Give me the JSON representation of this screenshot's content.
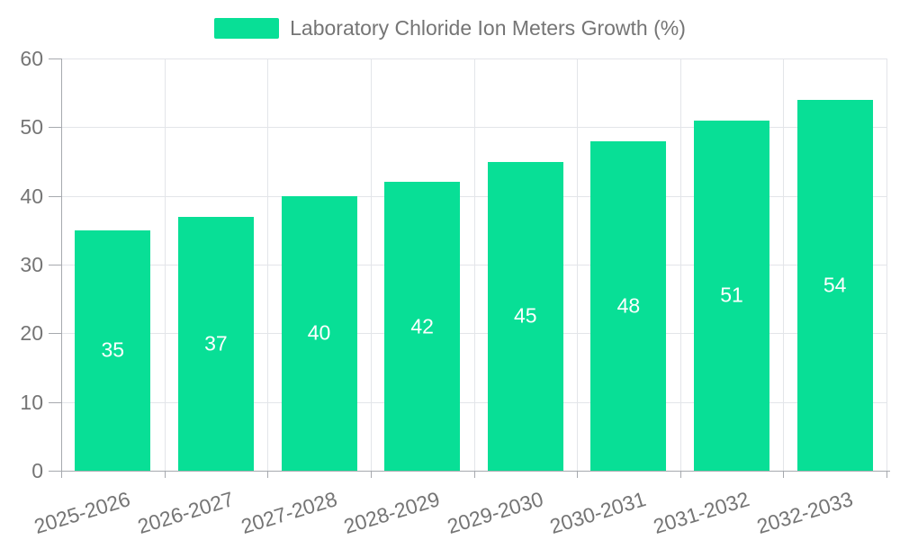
{
  "chart_data": {
    "type": "bar",
    "series_name": "Laboratory Chloride Ion Meters Growth (%)",
    "categories": [
      "2025-2026",
      "2026-2027",
      "2027-2028",
      "2028-2029",
      "2029-2030",
      "2030-2031",
      "2031-2032",
      "2032-2033"
    ],
    "values": [
      35,
      37,
      40,
      42,
      45,
      48,
      51,
      54
    ],
    "xlabel": "",
    "ylabel": "",
    "ylim": [
      0,
      60
    ],
    "ytick_step": 10,
    "yticks": [
      0,
      10,
      20,
      30,
      40,
      50,
      60
    ],
    "grid": true,
    "legend_position": "top-center",
    "value_label_position": "inside-center",
    "xtick_rotation_deg": -17,
    "colors": {
      "bar": "#08DF96",
      "grid": "#E3E5E9",
      "axis": "#A6A9AE",
      "text": "#757575",
      "value_label": "#FFFFFF",
      "background": "#FFFFFF"
    }
  }
}
